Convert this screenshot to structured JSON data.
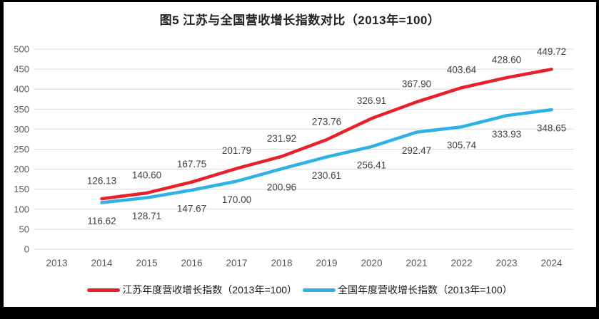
{
  "chart_data": {
    "type": "line",
    "title": "图5  江苏与全国营收增长指数对比（2013年=100）",
    "categories": [
      "2013",
      "2014",
      "2015",
      "2016",
      "2017",
      "2018",
      "2019",
      "2020",
      "2021",
      "2022",
      "2023",
      "2024"
    ],
    "series": [
      {
        "name": "江苏年度营收增长指数（2013年=100）",
        "color": "#e8202a",
        "values": [
          null,
          126.13,
          140.6,
          167.75,
          201.79,
          231.92,
          273.76,
          326.91,
          367.9,
          403.64,
          428.6,
          449.72
        ],
        "label_side": "above"
      },
      {
        "name": "全国年度营收增长指数（2013年=100）",
        "color": "#2eb1e4",
        "values": [
          null,
          116.62,
          128.71,
          147.67,
          170.0,
          200.96,
          230.61,
          256.41,
          292.47,
          305.74,
          333.93,
          348.65
        ],
        "label_side": "below"
      }
    ],
    "ylim": [
      0,
      500
    ],
    "ytick_step": 50,
    "yticks": [
      "0",
      "50",
      "100",
      "150",
      "200",
      "250",
      "300",
      "350",
      "400",
      "450",
      "500"
    ],
    "grid": "horizontal",
    "gridline_color": "#d9d9d9",
    "tick_label_color": "#595959",
    "data_label_color": "#404040",
    "legend_position": "bottom",
    "value_decimals": 2
  }
}
